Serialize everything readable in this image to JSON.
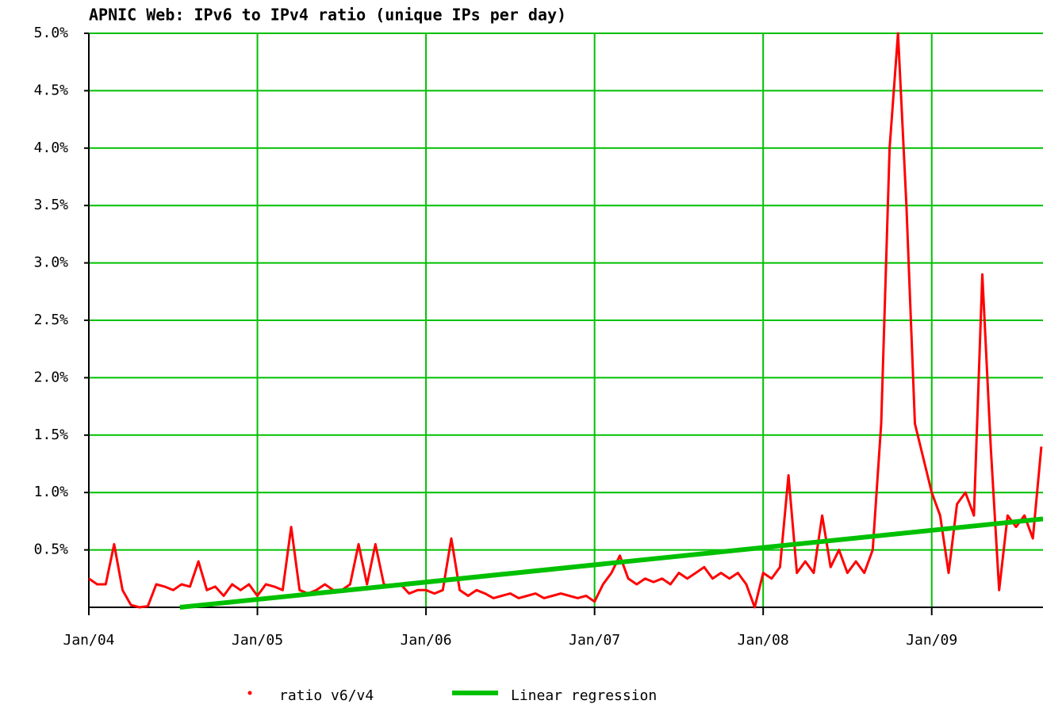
{
  "chart_data": {
    "type": "line",
    "title": "APNIC Web: IPv6 to IPv4 ratio (unique IPs per day)",
    "xlim": [
      2004,
      2009.66
    ],
    "xticks": [
      {
        "value": 2004,
        "label": "Jan/04"
      },
      {
        "value": 2005,
        "label": "Jan/05"
      },
      {
        "value": 2006,
        "label": "Jan/06"
      },
      {
        "value": 2007,
        "label": "Jan/07"
      },
      {
        "value": 2008,
        "label": "Jan/08"
      },
      {
        "value": 2009,
        "label": "Jan/09"
      }
    ],
    "ylim": [
      0,
      5
    ],
    "yticks": [
      {
        "value": 0.5,
        "label": "0.5%"
      },
      {
        "value": 1.0,
        "label": "1.0%"
      },
      {
        "value": 1.5,
        "label": "1.5%"
      },
      {
        "value": 2.0,
        "label": "2.0%"
      },
      {
        "value": 2.5,
        "label": "2.5%"
      },
      {
        "value": 3.0,
        "label": "3.0%"
      },
      {
        "value": 3.5,
        "label": "3.5%"
      },
      {
        "value": 4.0,
        "label": "4.0%"
      },
      {
        "value": 4.5,
        "label": "4.5%"
      },
      {
        "value": 5.0,
        "label": "5.0%"
      }
    ],
    "grid": true,
    "grid_color": "#00c000",
    "legend": "bottom",
    "series": [
      {
        "name": "ratio v6/v4",
        "color": "#ff0000",
        "x": [
          2004.0,
          2004.05,
          2004.1,
          2004.15,
          2004.2,
          2004.25,
          2004.3,
          2004.35,
          2004.4,
          2004.45,
          2004.5,
          2004.55,
          2004.6,
          2004.65,
          2004.7,
          2004.75,
          2004.8,
          2004.85,
          2004.9,
          2004.95,
          2005.0,
          2005.05,
          2005.1,
          2005.15,
          2005.2,
          2005.25,
          2005.3,
          2005.35,
          2005.4,
          2005.45,
          2005.5,
          2005.55,
          2005.6,
          2005.65,
          2005.7,
          2005.75,
          2005.8,
          2005.85,
          2005.9,
          2005.95,
          2006.0,
          2006.05,
          2006.1,
          2006.15,
          2006.2,
          2006.25,
          2006.3,
          2006.35,
          2006.4,
          2006.45,
          2006.5,
          2006.55,
          2006.6,
          2006.65,
          2006.7,
          2006.75,
          2006.8,
          2006.85,
          2006.9,
          2006.95,
          2007.0,
          2007.05,
          2007.1,
          2007.15,
          2007.2,
          2007.25,
          2007.3,
          2007.35,
          2007.4,
          2007.45,
          2007.5,
          2007.55,
          2007.6,
          2007.65,
          2007.7,
          2007.75,
          2007.8,
          2007.85,
          2007.9,
          2007.95,
          2008.0,
          2008.05,
          2008.1,
          2008.15,
          2008.2,
          2008.25,
          2008.3,
          2008.35,
          2008.4,
          2008.45,
          2008.5,
          2008.55,
          2008.6,
          2008.65,
          2008.7,
          2008.75,
          2008.8,
          2008.85,
          2008.9,
          2008.95,
          2009.0,
          2009.05,
          2009.1,
          2009.15,
          2009.2,
          2009.25,
          2009.3,
          2009.35,
          2009.4,
          2009.45,
          2009.5,
          2009.55,
          2009.6,
          2009.65
        ],
        "values": [
          0.25,
          0.2,
          0.2,
          0.55,
          0.15,
          0.02,
          0.0,
          0.01,
          0.2,
          0.18,
          0.15,
          0.2,
          0.18,
          0.4,
          0.15,
          0.18,
          0.1,
          0.2,
          0.15,
          0.2,
          0.1,
          0.2,
          0.18,
          0.15,
          0.7,
          0.15,
          0.12,
          0.15,
          0.2,
          0.15,
          0.15,
          0.2,
          0.55,
          0.2,
          0.55,
          0.2,
          0.18,
          0.2,
          0.12,
          0.15,
          0.15,
          0.12,
          0.15,
          0.6,
          0.15,
          0.1,
          0.15,
          0.12,
          0.08,
          0.1,
          0.12,
          0.08,
          0.1,
          0.12,
          0.08,
          0.1,
          0.12,
          0.1,
          0.08,
          0.1,
          0.05,
          0.2,
          0.3,
          0.45,
          0.25,
          0.2,
          0.25,
          0.22,
          0.25,
          0.2,
          0.3,
          0.25,
          0.3,
          0.35,
          0.25,
          0.3,
          0.25,
          0.3,
          0.2,
          0.0,
          0.3,
          0.25,
          0.35,
          1.15,
          0.3,
          0.4,
          0.3,
          0.8,
          0.35,
          0.5,
          0.3,
          0.4,
          0.3,
          0.5,
          1.6,
          4.0,
          5.0,
          3.5,
          1.6,
          1.3,
          1.0,
          0.8,
          0.3,
          0.9,
          1.0,
          0.8,
          2.9,
          1.4,
          0.15,
          0.8,
          0.7,
          0.8,
          0.6,
          1.4
        ]
      },
      {
        "name": "Linear regression",
        "color": "#00c000",
        "x": [
          2004.54,
          2009.66
        ],
        "values": [
          0,
          0.77
        ]
      }
    ]
  }
}
